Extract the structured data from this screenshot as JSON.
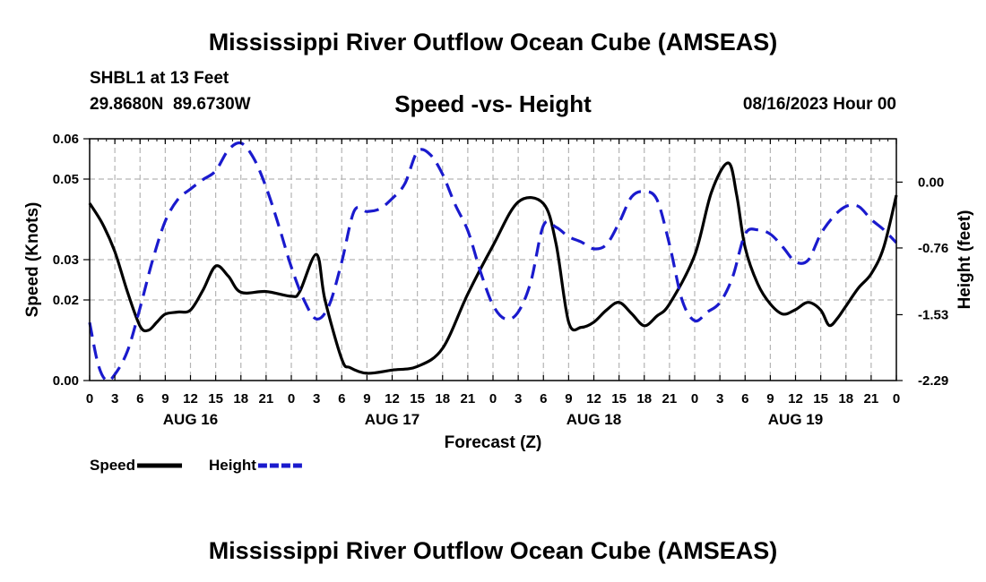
{
  "page": {
    "title_top": "Mississippi River Outflow Ocean Cube (AMSEAS)",
    "title_bottom": "Mississippi River Outflow Ocean Cube (AMSEAS)",
    "station": "SHBL1 at 13 Feet",
    "coords": "29.8680N  89.6730W",
    "subtitle": "Speed -vs- Height",
    "datetime": "08/16/2023 Hour 00"
  },
  "chart_data": {
    "type": "line",
    "title": "Speed -vs- Height",
    "xlabel": "Forecast (Z)",
    "ylabel": "Speed (Knots)",
    "y2label": "Height (feet)",
    "xlim": [
      0,
      96
    ],
    "ylim": [
      0,
      0.06
    ],
    "y2lim": [
      -2.29,
      0.5
    ],
    "x_ticks": [
      0,
      3,
      6,
      9,
      12,
      15,
      18,
      21,
      24,
      27,
      30,
      33,
      36,
      39,
      42,
      45,
      48,
      51,
      54,
      57,
      60,
      63,
      66,
      69,
      72,
      75,
      78,
      81,
      84,
      87,
      90,
      93,
      96
    ],
    "x_tick_labels": [
      "0",
      "3",
      "6",
      "9",
      "12",
      "15",
      "18",
      "21",
      "0",
      "3",
      "6",
      "9",
      "12",
      "15",
      "18",
      "21",
      "0",
      "3",
      "6",
      "9",
      "12",
      "15",
      "18",
      "21",
      "0",
      "3",
      "6",
      "9",
      "12",
      "15",
      "18",
      "21",
      "0"
    ],
    "y_ticks": [
      0.0,
      0.02,
      0.03,
      0.05,
      0.06
    ],
    "y_tick_labels": [
      "0.00",
      "0.02",
      "0.03",
      "0.05",
      "0.06"
    ],
    "y2_ticks": [
      0.0,
      -0.76,
      -1.53,
      -2.29
    ],
    "y2_tick_labels": [
      "0.00",
      "-0.76",
      "-1.53",
      "-2.29"
    ],
    "day_labels": [
      {
        "x": 12,
        "label": "AUG 16"
      },
      {
        "x": 36,
        "label": "AUG 17"
      },
      {
        "x": 60,
        "label": "AUG 18"
      },
      {
        "x": 84,
        "label": "AUG 19"
      }
    ],
    "grid": true,
    "series": [
      {
        "name": "Speed",
        "axis": "left",
        "color": "#000000",
        "dash": "solid",
        "x": [
          0,
          1.5,
          3,
          4.5,
          6,
          7,
          8,
          9,
          10.5,
          12,
          13.5,
          15,
          16.5,
          18,
          21,
          24,
          25,
          27,
          28,
          30,
          31,
          33,
          36,
          39,
          42,
          45,
          48,
          51,
          54,
          55.5,
          57,
          58.5,
          60,
          61.5,
          63,
          64.5,
          66,
          67.5,
          69,
          72,
          74,
          76,
          77,
          78,
          79.5,
          81,
          82.5,
          84,
          85.5,
          87,
          88,
          89,
          90,
          91.5,
          93,
          94.5,
          96
        ],
        "values": [
          0.044,
          0.039,
          0.032,
          0.022,
          0.0135,
          0.0125,
          0.0145,
          0.0165,
          0.017,
          0.0175,
          0.0225,
          0.0284,
          0.0259,
          0.0219,
          0.0221,
          0.0209,
          0.0221,
          0.0313,
          0.0201,
          0.0053,
          0.0032,
          0.0018,
          0.0026,
          0.0035,
          0.008,
          0.0215,
          0.0335,
          0.0443,
          0.0439,
          0.034,
          0.0145,
          0.0132,
          0.0145,
          0.0175,
          0.0194,
          0.0166,
          0.0136,
          0.016,
          0.019,
          0.0311,
          0.0468,
          0.054,
          0.046,
          0.033,
          0.024,
          0.019,
          0.0165,
          0.0176,
          0.0194,
          0.0175,
          0.0137,
          0.0155,
          0.0185,
          0.023,
          0.0265,
          0.0331,
          0.046
        ]
      },
      {
        "name": "Height",
        "axis": "right",
        "color": "#1a1acd",
        "dash": "dashed",
        "x": [
          0,
          1,
          2,
          3,
          4.5,
          6,
          7.5,
          9,
          10.5,
          12,
          13.5,
          15,
          16.5,
          18,
          19.5,
          21,
          22.5,
          24,
          25.5,
          27,
          28.5,
          30,
          31.5,
          33,
          34.5,
          36,
          37.5,
          39,
          40.5,
          42,
          43.5,
          45,
          46.5,
          48,
          49.5,
          51,
          52.5,
          54,
          55.5,
          57,
          58.5,
          60,
          61.5,
          63,
          64.5,
          66,
          67.5,
          69,
          70.5,
          72,
          73.5,
          75,
          76.5,
          78,
          79.5,
          81,
          82.5,
          84,
          85.5,
          87,
          88.5,
          90,
          91.5,
          93,
          94.5,
          96
        ],
        "values": [
          -1.62,
          -2.1,
          -2.29,
          -2.22,
          -1.95,
          -1.45,
          -0.9,
          -0.45,
          -0.2,
          -0.08,
          0.03,
          0.13,
          0.37,
          0.45,
          0.28,
          -0.06,
          -0.5,
          -0.98,
          -1.36,
          -1.58,
          -1.42,
          -0.92,
          -0.33,
          -0.34,
          -0.31,
          -0.19,
          -0.02,
          0.35,
          0.32,
          0.09,
          -0.26,
          -0.56,
          -1.03,
          -1.42,
          -1.58,
          -1.5,
          -1.15,
          -0.5,
          -0.52,
          -0.63,
          -0.69,
          -0.77,
          -0.72,
          -0.47,
          -0.17,
          -0.11,
          -0.2,
          -0.72,
          -1.36,
          -1.6,
          -1.5,
          -1.39,
          -1.1,
          -0.6,
          -0.55,
          -0.6,
          -0.75,
          -0.92,
          -0.9,
          -0.6,
          -0.4,
          -0.28,
          -0.28,
          -0.43,
          -0.55,
          -0.7
        ]
      }
    ],
    "legend": [
      {
        "label": "Speed",
        "color": "#000000",
        "dash": "solid"
      },
      {
        "label": "Height",
        "color": "#1a1acd",
        "dash": "dashed"
      }
    ]
  }
}
